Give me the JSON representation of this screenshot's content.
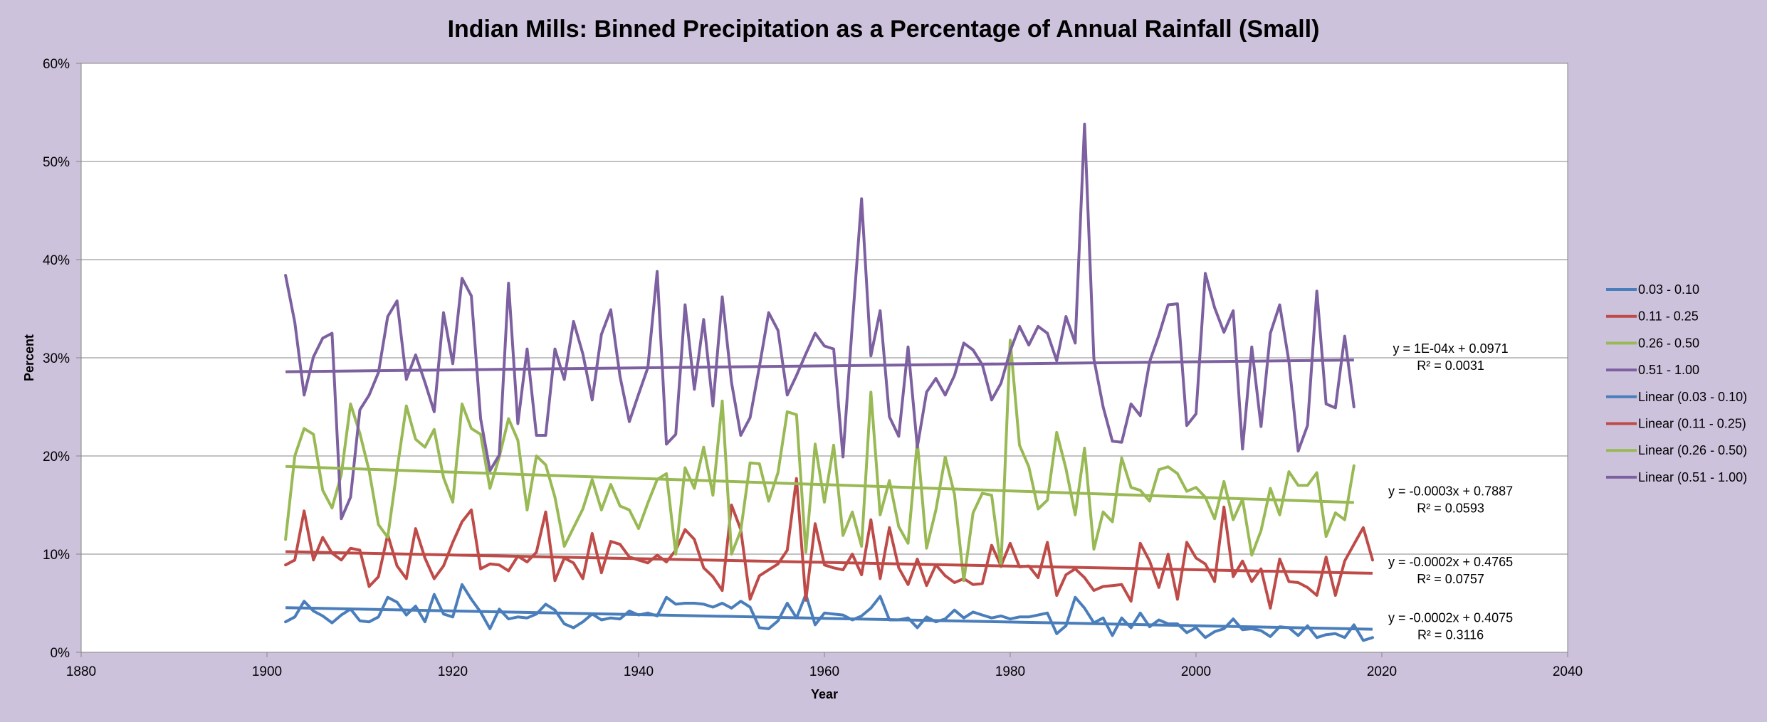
{
  "chart_data": {
    "type": "line",
    "title": "Indian Mills: Binned Precipitation as a Percentage of Annual Rainfall (Small)",
    "xlabel": "Year",
    "ylabel": "Percent",
    "xlim": [
      1880,
      2040
    ],
    "ylim": [
      0,
      0.6
    ],
    "x_ticks": [
      "1880",
      "1900",
      "1920",
      "1940",
      "1960",
      "1980",
      "2000",
      "2020",
      "2040"
    ],
    "y_ticks": [
      "0%",
      "10%",
      "20%",
      "30%",
      "40%",
      "50%",
      "60%"
    ],
    "grid": "horizontal",
    "legend_position": "right",
    "x_start": 1902,
    "series": [
      {
        "name": "0.03 - 0.10",
        "color": "#4a7ebb",
        "values": [
          0.031,
          0.036,
          0.052,
          0.042,
          0.037,
          0.03,
          0.038,
          0.044,
          0.032,
          0.031,
          0.036,
          0.056,
          0.051,
          0.038,
          0.047,
          0.031,
          0.059,
          0.039,
          0.036,
          0.069,
          0.054,
          0.041,
          0.024,
          0.044,
          0.034,
          0.036,
          0.035,
          0.039,
          0.049,
          0.043,
          0.029,
          0.025,
          0.031,
          0.039,
          0.033,
          0.035,
          0.034,
          0.042,
          0.038,
          0.04,
          0.037,
          0.056,
          0.049,
          0.05,
          0.05,
          0.049,
          0.046,
          0.05,
          0.045,
          0.052,
          0.046,
          0.025,
          0.024,
          0.032,
          0.05,
          0.035,
          0.059,
          0.028,
          0.04,
          0.039,
          0.038,
          0.033,
          0.037,
          0.045,
          0.057,
          0.033,
          0.033,
          0.035,
          0.025,
          0.036,
          0.031,
          0.034,
          0.043,
          0.035,
          0.041,
          0.038,
          0.035,
          0.037,
          0.034,
          0.036,
          0.036,
          0.038,
          0.04,
          0.019,
          0.027,
          0.056,
          0.045,
          0.03,
          0.035,
          0.017,
          0.035,
          0.025,
          0.04,
          0.026,
          0.033,
          0.029,
          0.029,
          0.02,
          0.025,
          0.015,
          0.021,
          0.024,
          0.034,
          0.023,
          0.024,
          0.022,
          0.016,
          0.026,
          0.025,
          0.017,
          0.027,
          0.015,
          0.018,
          0.019,
          0.015,
          0.028,
          0.012,
          0.015
        ],
        "trend": {
          "name": "Linear (0.03 - 0.10)",
          "start": 0.0455,
          "end": 0.0235,
          "equation": "y = -0.0002x + 0.4075",
          "r2": "R² = 0.3116"
        }
      },
      {
        "name": "0.11 - 0.25",
        "color": "#be4b48",
        "values": [
          0.089,
          0.094,
          0.144,
          0.094,
          0.117,
          0.101,
          0.094,
          0.106,
          0.104,
          0.067,
          0.077,
          0.12,
          0.088,
          0.075,
          0.126,
          0.096,
          0.075,
          0.088,
          0.112,
          0.133,
          0.145,
          0.085,
          0.09,
          0.089,
          0.083,
          0.098,
          0.092,
          0.102,
          0.143,
          0.073,
          0.096,
          0.091,
          0.075,
          0.121,
          0.081,
          0.113,
          0.11,
          0.097,
          0.094,
          0.091,
          0.099,
          0.092,
          0.104,
          0.125,
          0.115,
          0.086,
          0.077,
          0.063,
          0.15,
          0.125,
          0.054,
          0.078,
          0.084,
          0.09,
          0.104,
          0.177,
          0.053,
          0.131,
          0.089,
          0.086,
          0.084,
          0.1,
          0.079,
          0.135,
          0.075,
          0.127,
          0.086,
          0.069,
          0.095,
          0.068,
          0.089,
          0.078,
          0.071,
          0.075,
          0.069,
          0.07,
          0.109,
          0.088,
          0.111,
          0.087,
          0.088,
          0.076,
          0.112,
          0.058,
          0.079,
          0.085,
          0.076,
          0.063,
          0.067,
          0.068,
          0.069,
          0.052,
          0.111,
          0.093,
          0.066,
          0.1,
          0.054,
          0.112,
          0.096,
          0.09,
          0.072,
          0.148,
          0.077,
          0.093,
          0.072,
          0.085,
          0.045,
          0.095,
          0.072,
          0.071,
          0.066,
          0.058,
          0.097,
          0.058,
          0.093,
          0.11,
          0.127,
          0.094
        ],
        "trend": {
          "name": "Linear (0.11 - 0.25)",
          "start": 0.1025,
          "end": 0.0805,
          "equation": "y = -0.0002x + 0.4765",
          "r2": "R² = 0.0757"
        }
      },
      {
        "name": "0.26 - 0.50",
        "color": "#98b954",
        "values": [
          0.115,
          0.2,
          0.228,
          0.222,
          0.165,
          0.147,
          0.181,
          0.253,
          0.223,
          0.185,
          0.13,
          0.117,
          0.186,
          0.251,
          0.217,
          0.209,
          0.227,
          0.178,
          0.153,
          0.253,
          0.228,
          0.222,
          0.167,
          0.199,
          0.238,
          0.216,
          0.145,
          0.2,
          0.191,
          0.158,
          0.108,
          0.127,
          0.146,
          0.176,
          0.145,
          0.171,
          0.149,
          0.145,
          0.126,
          0.152,
          0.176,
          0.182,
          0.1,
          0.188,
          0.167,
          0.209,
          0.16,
          0.256,
          0.1,
          0.124,
          0.193,
          0.192,
          0.154,
          0.183,
          0.245,
          0.242,
          0.102,
          0.212,
          0.153,
          0.211,
          0.119,
          0.143,
          0.108,
          0.265,
          0.14,
          0.175,
          0.128,
          0.111,
          0.215,
          0.106,
          0.145,
          0.199,
          0.161,
          0.073,
          0.142,
          0.162,
          0.16,
          0.087,
          0.318,
          0.211,
          0.189,
          0.146,
          0.155,
          0.224,
          0.187,
          0.14,
          0.208,
          0.105,
          0.143,
          0.133,
          0.198,
          0.168,
          0.165,
          0.154,
          0.186,
          0.189,
          0.182,
          0.164,
          0.168,
          0.158,
          0.136,
          0.174,
          0.135,
          0.156,
          0.099,
          0.124,
          0.167,
          0.14,
          0.184,
          0.17,
          0.17,
          0.183,
          0.118,
          0.142,
          0.135,
          0.19
        ],
        "trend": {
          "name": "Linear (0.26 - 0.50)",
          "start": 0.1893,
          "end": 0.1526,
          "equation": "y = -0.0003x + 0.7887",
          "r2": "R² = 0.0593"
        }
      },
      {
        "name": "0.51 - 1.00",
        "color": "#7d60a0",
        "values": [
          0.384,
          0.336,
          0.262,
          0.301,
          0.32,
          0.325,
          0.136,
          0.158,
          0.247,
          0.262,
          0.285,
          0.342,
          0.358,
          0.278,
          0.303,
          0.275,
          0.245,
          0.346,
          0.294,
          0.381,
          0.363,
          0.238,
          0.185,
          0.201,
          0.376,
          0.233,
          0.309,
          0.221,
          0.221,
          0.309,
          0.278,
          0.337,
          0.304,
          0.257,
          0.324,
          0.349,
          0.281,
          0.235,
          0.263,
          0.29,
          0.388,
          0.212,
          0.222,
          0.354,
          0.268,
          0.339,
          0.251,
          0.362,
          0.275,
          0.221,
          0.239,
          0.291,
          0.346,
          0.328,
          0.262,
          0.282,
          0.304,
          0.325,
          0.312,
          0.309,
          0.199,
          0.334,
          0.462,
          0.302,
          0.348,
          0.24,
          0.22,
          0.311,
          0.209,
          0.265,
          0.279,
          0.262,
          0.282,
          0.315,
          0.308,
          0.293,
          0.257,
          0.274,
          0.307,
          0.332,
          0.313,
          0.332,
          0.325,
          0.297,
          0.342,
          0.315,
          0.538,
          0.299,
          0.25,
          0.215,
          0.214,
          0.253,
          0.241,
          0.296,
          0.323,
          0.354,
          0.355,
          0.231,
          0.243,
          0.386,
          0.351,
          0.326,
          0.348,
          0.207,
          0.311,
          0.23,
          0.325,
          0.354,
          0.296,
          0.205,
          0.231,
          0.368,
          0.253,
          0.249,
          0.322,
          0.25
        ],
        "trend": {
          "name": "Linear (0.51 - 1.00)",
          "start": 0.2858,
          "end": 0.2977,
          "equation": "y = 1E-04x + 0.0971",
          "r2": "R² = 0.0031"
        }
      }
    ]
  }
}
